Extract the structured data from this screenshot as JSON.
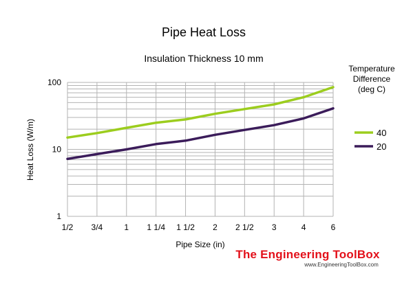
{
  "chart_data": {
    "type": "line",
    "title": "Pipe Heat Loss",
    "subtitle": "Insulation Thickness 10 mm",
    "xlabel": "Pipe Size (in)",
    "ylabel": "Heat Loss (W/m)",
    "yscale": "log",
    "ylim": [
      1,
      100
    ],
    "y_ticks": [
      "1",
      "10",
      "100"
    ],
    "categories": [
      "1/2",
      "3/4",
      "1",
      "1 1/4",
      "1 1/2",
      "2",
      "2 1/2",
      "3",
      "4",
      "6"
    ],
    "legend_title": "Temperature Difference (deg C)",
    "legend_title_lines": [
      "Temperature",
      "Difference",
      "(deg C)"
    ],
    "legend_position": "right",
    "grid": true,
    "series": [
      {
        "name": "40",
        "color": "#9ccd1e",
        "values": [
          15,
          17.5,
          21,
          25,
          28,
          34,
          40,
          47,
          60,
          85
        ]
      },
      {
        "name": "20",
        "color": "#3b1c5a",
        "values": [
          7.2,
          8.5,
          10,
          12,
          13.5,
          16.5,
          19.5,
          23,
          29,
          41
        ]
      }
    ]
  },
  "watermark": {
    "brand": "The Engineering ToolBox",
    "url": "www.EngineeringToolBox.com"
  }
}
